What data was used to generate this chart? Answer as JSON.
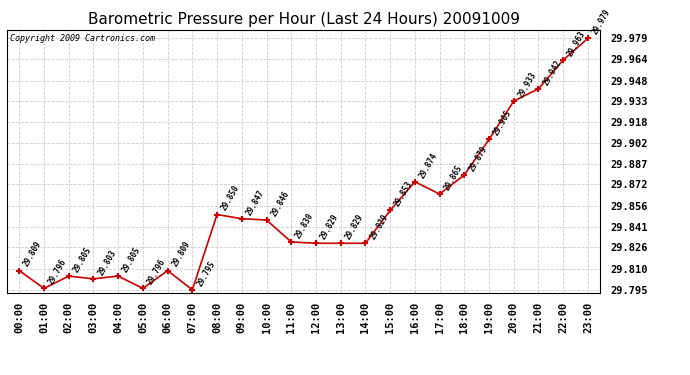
{
  "title": "Barometric Pressure per Hour (Last 24 Hours) 20091009",
  "copyright": "Copyright 2009 Cartronics.com",
  "hours": [
    "00:00",
    "01:00",
    "02:00",
    "03:00",
    "04:00",
    "05:00",
    "06:00",
    "07:00",
    "08:00",
    "09:00",
    "10:00",
    "11:00",
    "12:00",
    "13:00",
    "14:00",
    "15:00",
    "16:00",
    "17:00",
    "18:00",
    "19:00",
    "20:00",
    "21:00",
    "22:00",
    "23:00"
  ],
  "values": [
    29.809,
    29.796,
    29.805,
    29.803,
    29.805,
    29.796,
    29.809,
    29.795,
    29.85,
    29.847,
    29.846,
    29.83,
    29.829,
    29.829,
    29.829,
    29.853,
    29.874,
    29.865,
    29.879,
    29.905,
    29.933,
    29.942,
    29.963,
    29.979
  ],
  "line_color": "#cc0000",
  "marker_color": "#cc0000",
  "background_color": "#ffffff",
  "grid_color": "#cccccc",
  "title_fontsize": 11,
  "annotation_fontsize": 5.5,
  "tick_fontsize": 7.5,
  "copyright_fontsize": 6,
  "ylim_min": 29.793,
  "ylim_max": 29.985,
  "yticks": [
    29.795,
    29.81,
    29.826,
    29.841,
    29.856,
    29.872,
    29.887,
    29.902,
    29.918,
    29.933,
    29.948,
    29.964,
    29.979
  ]
}
